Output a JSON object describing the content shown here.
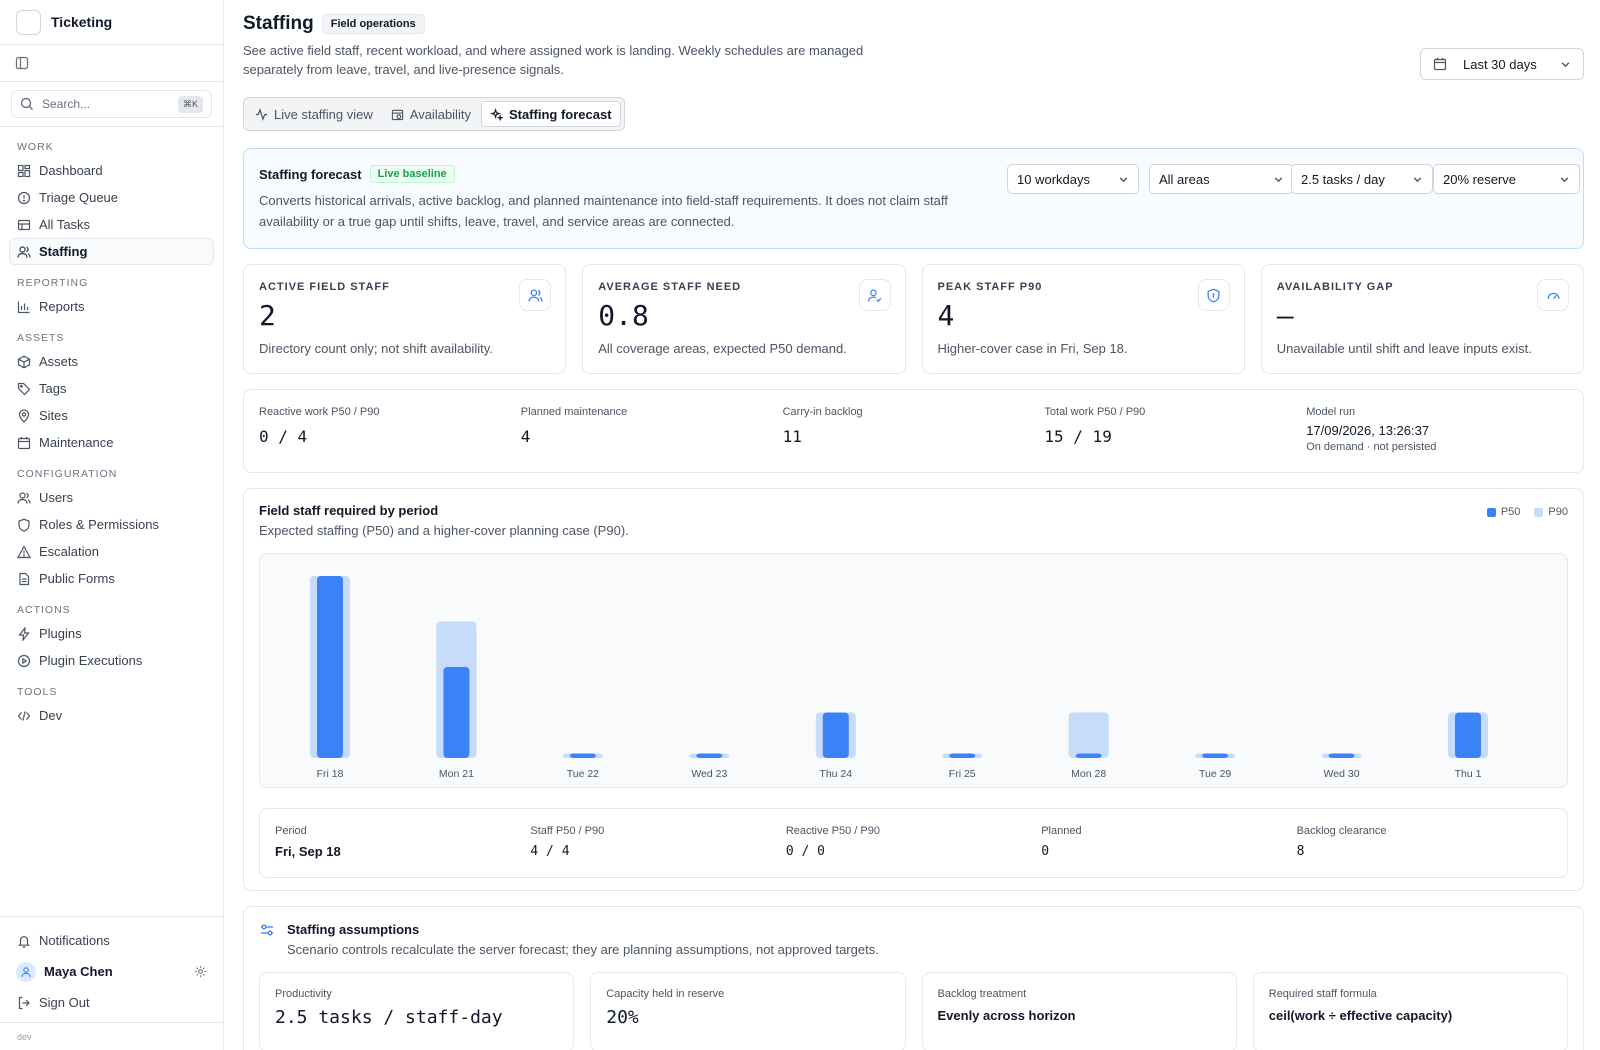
{
  "app": {
    "name": "Ticketing",
    "env": "dev"
  },
  "search": {
    "placeholder": "Search...",
    "shortcut": "⌘K"
  },
  "nav": {
    "work": {
      "title": "Work",
      "items": [
        {
          "label": "Dashboard",
          "icon": "dashboard-icon"
        },
        {
          "label": "Triage Queue",
          "icon": "alert-circle-icon"
        },
        {
          "label": "All Tasks",
          "icon": "tasks-icon"
        },
        {
          "label": "Staffing",
          "icon": "users-icon",
          "active": true
        }
      ]
    },
    "reporting": {
      "title": "Reporting",
      "items": [
        {
          "label": "Reports",
          "icon": "bar-chart-icon"
        }
      ]
    },
    "assets": {
      "title": "Assets",
      "items": [
        {
          "label": "Assets",
          "icon": "box-icon"
        },
        {
          "label": "Tags",
          "icon": "tag-icon"
        },
        {
          "label": "Sites",
          "icon": "map-pin-icon"
        },
        {
          "label": "Maintenance",
          "icon": "calendar-icon"
        }
      ]
    },
    "configuration": {
      "title": "Configuration",
      "items": [
        {
          "label": "Users",
          "icon": "users-icon"
        },
        {
          "label": "Roles & Permissions",
          "icon": "shield-icon"
        },
        {
          "label": "Escalation",
          "icon": "warning-icon"
        },
        {
          "label": "Public Forms",
          "icon": "file-icon"
        }
      ]
    },
    "actions": {
      "title": "Actions",
      "items": [
        {
          "label": "Plugins",
          "icon": "zap-icon"
        },
        {
          "label": "Plugin Executions",
          "icon": "play-circle-icon"
        }
      ]
    },
    "tools": {
      "title": "Tools",
      "items": [
        {
          "label": "Dev",
          "icon": "code-icon"
        }
      ]
    }
  },
  "footer": {
    "notifications": "Notifications",
    "user": "Maya Chen",
    "signout": "Sign Out"
  },
  "page": {
    "title": "Staffing",
    "badge": "Field operations",
    "description": "See active field staff, recent workload, and where assigned work is landing. Weekly schedules are managed separately from leave, travel, and live-presence signals.",
    "range": "Last 30 days",
    "tabs": [
      "Live staffing view",
      "Availability",
      "Staffing forecast"
    ]
  },
  "forecast": {
    "title": "Staffing forecast",
    "badge": "Live baseline",
    "description": "Converts historical arrivals, active backlog, and planned maintenance into field-staff requirements. It does not claim staff availability or a true gap until shifts, leave, travel, and service areas are connected.",
    "selects": {
      "horizon": "10 workdays",
      "area": "All areas",
      "productivity": "2.5 tasks / day",
      "reserve": "20% reserve"
    }
  },
  "kpis": [
    {
      "label": "Active field staff",
      "value": "2",
      "note": "Directory count only; not shift availability."
    },
    {
      "label": "Average staff need",
      "value": "0.8",
      "note": "All coverage areas, expected P50 demand."
    },
    {
      "label": "Peak staff P90",
      "value": "4",
      "note": "Higher-cover case in Fri, Sep 18."
    },
    {
      "label": "Availability gap",
      "value": "—",
      "note": "Unavailable until shift and leave inputs exist."
    }
  ],
  "stats": {
    "reactive": {
      "label": "Reactive work P50 / P90",
      "value": "0 / 4"
    },
    "planned": {
      "label": "Planned maintenance",
      "value": "4"
    },
    "backlog": {
      "label": "Carry-in backlog",
      "value": "11"
    },
    "total": {
      "label": "Total work P50 / P90",
      "value": "15 / 19"
    },
    "model": {
      "label": "Model run",
      "value": "17/09/2026, 13:26:37",
      "sub": "On demand · not persisted"
    }
  },
  "chart_card": {
    "title": "Field staff required by period",
    "subtitle": "Expected staffing (P50) and a higher-cover planning case (P90).",
    "legend": {
      "p50": "P50",
      "p90": "P90"
    }
  },
  "chart_data": {
    "type": "bar",
    "categories": [
      "Fri 18",
      "Mon 21",
      "Tue 22",
      "Wed 23",
      "Thu 24",
      "Fri 25",
      "Mon 28",
      "Tue 29",
      "Wed 30",
      "Thu 1"
    ],
    "series": [
      {
        "name": "P50",
        "values": [
          4,
          2,
          0.1,
          0.1,
          1,
          0.1,
          0.1,
          0.1,
          0.1,
          1
        ],
        "color": "#3b82f6"
      },
      {
        "name": "P90",
        "values": [
          4,
          3,
          0.1,
          0.1,
          1,
          0.1,
          1,
          0.1,
          0.1,
          1
        ],
        "color": "#c7dbfa"
      }
    ],
    "ylim": [
      0,
      4
    ]
  },
  "detail": {
    "period": {
      "label": "Period",
      "value": "Fri, Sep 18"
    },
    "staff": {
      "label": "Staff P50 / P90",
      "value": "4 / 4"
    },
    "reactive": {
      "label": "Reactive P50 / P90",
      "value": "0 / 0"
    },
    "planned": {
      "label": "Planned",
      "value": "0"
    },
    "backlog": {
      "label": "Backlog clearance",
      "value": "8"
    }
  },
  "assumptions": {
    "title": "Staffing assumptions",
    "subtitle": "Scenario controls recalculate the server forecast; they are planning assumptions, not approved targets.",
    "cards": [
      {
        "label": "Productivity",
        "value": "2.5 tasks / staff-day"
      },
      {
        "label": "Capacity held in reserve",
        "value": "20%"
      },
      {
        "label": "Backlog treatment",
        "value": "Evenly across horizon"
      },
      {
        "label": "Required staff formula",
        "value": "ceil(work ÷ effective capacity)"
      }
    ]
  },
  "colors": {
    "accent": "#3b82f6",
    "accent_light": "#c7dbfa",
    "live": "#16a34a"
  }
}
